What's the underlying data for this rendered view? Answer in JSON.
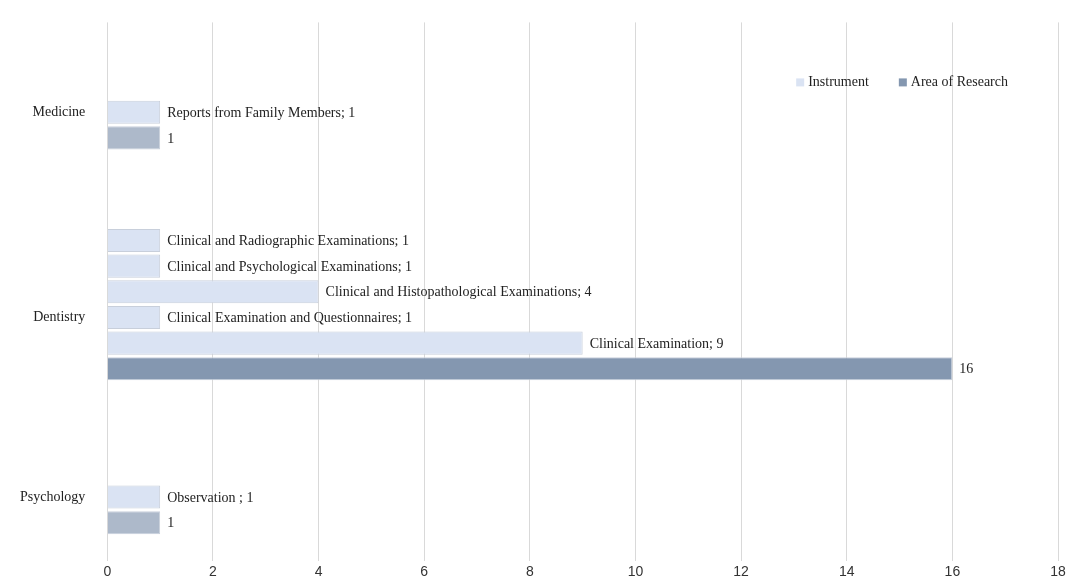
{
  "chart_data": {
    "type": "bar",
    "orientation": "horizontal",
    "categories": [
      null,
      null,
      null,
      "Medicine",
      null,
      null,
      null,
      null,
      null,
      null,
      null,
      "Dentistry",
      null,
      null,
      null,
      null,
      null,
      null,
      "Psychology",
      null,
      null
    ],
    "series": [
      {
        "name": "Instrument",
        "color": "#dae3f3",
        "colors": [
          null,
          null,
          null,
          "#dae3f3",
          null,
          null,
          null,
          null,
          "#dae3f3",
          "#dae3f3",
          "#dae3f3",
          "#dae3f3",
          "#dae3f3",
          null,
          null,
          null,
          null,
          null,
          "#dae3f3",
          null,
          null
        ],
        "values": [
          null,
          null,
          null,
          1,
          null,
          null,
          null,
          null,
          1,
          1,
          4,
          1,
          9,
          null,
          null,
          null,
          null,
          null,
          1,
          null,
          null
        ],
        "value_labels": [
          null,
          null,
          null,
          "Reports from Family Members; 1",
          null,
          null,
          null,
          null,
          "Clinical and Radiographic Examinations; 1",
          "Clinical and Psychological Examinations; 1",
          "Clinical and Histopathological Examinations; 4",
          "Clinical Examination and Questionnaires; 1",
          "Clinical Examination; 9",
          null,
          null,
          null,
          null,
          null,
          "Observation ; 1",
          null,
          null
        ]
      },
      {
        "name": "Area of Research",
        "color": "#8497b0",
        "colors": [
          null,
          null,
          null,
          null,
          "#adb9ca",
          null,
          null,
          null,
          null,
          null,
          null,
          null,
          null,
          "#8497b0",
          null,
          null,
          null,
          null,
          null,
          "#adb9ca",
          null
        ],
        "values": [
          null,
          null,
          null,
          null,
          1,
          null,
          null,
          null,
          null,
          null,
          null,
          null,
          null,
          16,
          null,
          null,
          null,
          null,
          null,
          1,
          null
        ],
        "value_labels": [
          null,
          null,
          null,
          null,
          "1",
          null,
          null,
          null,
          null,
          null,
          null,
          null,
          null,
          "16",
          null,
          null,
          null,
          null,
          null,
          "1",
          null
        ]
      }
    ],
    "xlim": [
      0,
      18
    ],
    "xticks": [
      0,
      2,
      4,
      6,
      8,
      10,
      12,
      14,
      16,
      18
    ],
    "grid": "x",
    "legend": "top right"
  }
}
